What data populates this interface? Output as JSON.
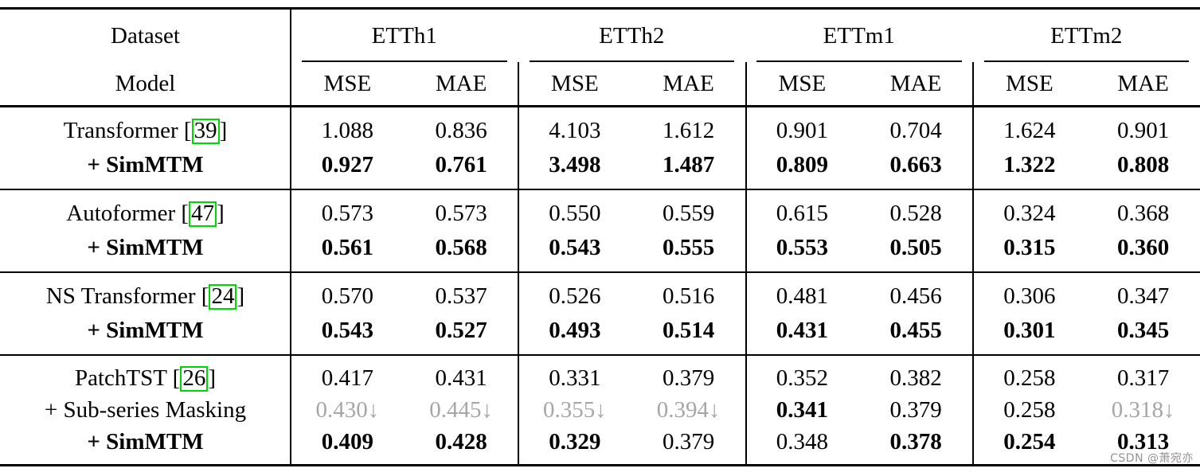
{
  "header": {
    "dataset": "Dataset",
    "model": "Model",
    "groups": [
      "ETTh1",
      "ETTh2",
      "ETTm1",
      "ETTm2"
    ],
    "metric_mse": "MSE",
    "metric_mae": "MAE"
  },
  "body": {
    "g0": {
      "r0": {
        "pre": "Transformer [",
        "cite": "39",
        "post": "]",
        "v": [
          "1.088",
          "0.836",
          "4.103",
          "1.612",
          "0.901",
          "0.704",
          "1.624",
          "0.901"
        ]
      },
      "r1": {
        "label": "+ SimMTM",
        "v": [
          "0.927",
          "0.761",
          "3.498",
          "1.487",
          "0.809",
          "0.663",
          "1.322",
          "0.808"
        ]
      }
    },
    "g1": {
      "r0": {
        "pre": "Autoformer [",
        "cite": "47",
        "post": "]",
        "v": [
          "0.573",
          "0.573",
          "0.550",
          "0.559",
          "0.615",
          "0.528",
          "0.324",
          "0.368"
        ]
      },
      "r1": {
        "label": "+ SimMTM",
        "v": [
          "0.561",
          "0.568",
          "0.543",
          "0.555",
          "0.553",
          "0.505",
          "0.315",
          "0.360"
        ]
      }
    },
    "g2": {
      "r0": {
        "pre": "NS Transformer [",
        "cite": "24",
        "post": "]",
        "v": [
          "0.570",
          "0.537",
          "0.526",
          "0.516",
          "0.481",
          "0.456",
          "0.306",
          "0.347"
        ]
      },
      "r1": {
        "label": "+ SimMTM",
        "v": [
          "0.543",
          "0.527",
          "0.493",
          "0.514",
          "0.431",
          "0.455",
          "0.301",
          "0.345"
        ]
      }
    },
    "g3": {
      "r0": {
        "pre": "PatchTST [",
        "cite": "26",
        "post": "]",
        "v": [
          "0.417",
          "0.431",
          "0.331",
          "0.379",
          "0.352",
          "0.382",
          "0.258",
          "0.317"
        ]
      },
      "r1": {
        "label": "+ Sub-series Masking",
        "v": [
          "0.430↓",
          "0.445↓",
          "0.355↓",
          "0.394↓",
          "0.341",
          "0.379",
          "0.258",
          "0.318↓"
        ]
      },
      "r2": {
        "label": "+ SimMTM",
        "v": [
          "0.409",
          "0.428",
          "0.329",
          "0.379",
          "0.348",
          "0.378",
          "0.254",
          "0.313"
        ]
      }
    }
  },
  "watermark": "CSDN @萧宛亦",
  "colors": {
    "citation_box": "#00d600",
    "muted_value": "#a6a6a6",
    "rule": "#000000",
    "background": "#ffffff"
  }
}
